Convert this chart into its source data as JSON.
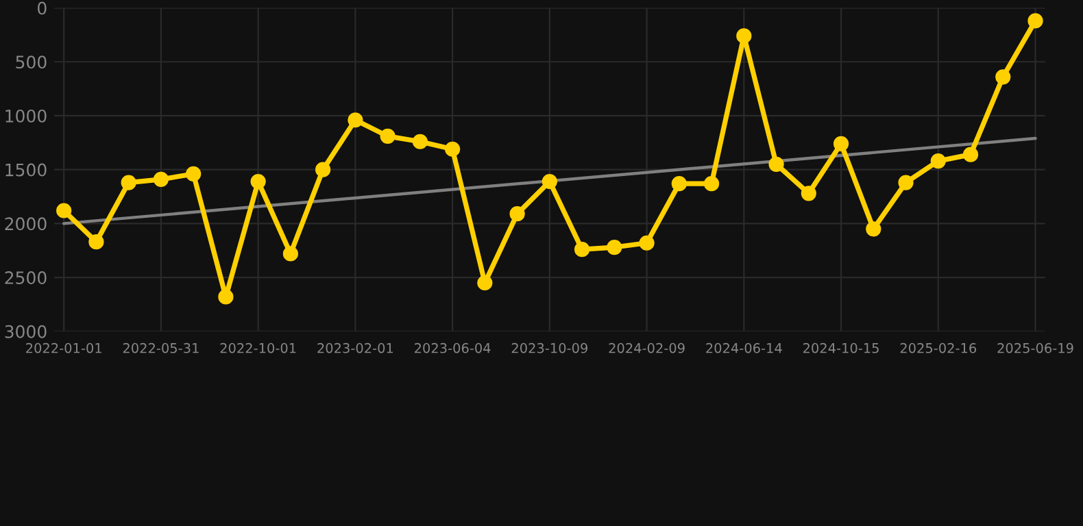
{
  "chart_data": {
    "type": "line",
    "categories": [
      "2022-01-01",
      null,
      null,
      "2022-05-31",
      null,
      null,
      "2022-10-01",
      null,
      null,
      "2023-02-01",
      null,
      null,
      "2023-06-04",
      null,
      null,
      "2023-10-09",
      null,
      null,
      "2024-02-09",
      null,
      null,
      "2024-06-14",
      null,
      null,
      "2024-10-15",
      null,
      null,
      "2025-02-16",
      null,
      null,
      "2025-06-19"
    ],
    "series": [
      {
        "color": "#ffd000",
        "marker": "circle",
        "values": [
          1880,
          2170,
          1620,
          1590,
          1540,
          2680,
          1610,
          2280,
          1500,
          1040,
          1190,
          1240,
          1310,
          2550,
          1910,
          1610,
          2240,
          2220,
          2180,
          1630,
          1630,
          260,
          1450,
          1720,
          1260,
          2050,
          1620,
          1420,
          1360,
          640,
          120
        ]
      },
      {
        "color": "#808080",
        "marker": "none",
        "values": [
          2000,
          null,
          null,
          null,
          null,
          null,
          null,
          null,
          null,
          null,
          null,
          null,
          null,
          null,
          null,
          null,
          null,
          null,
          null,
          null,
          null,
          null,
          null,
          null,
          null,
          null,
          null,
          null,
          null,
          null,
          1210
        ]
      }
    ],
    "ylim": [
      3000,
      0
    ],
    "yticks": [
      0,
      500,
      1000,
      1500,
      2000,
      2500,
      3000
    ],
    "grid": true
  }
}
